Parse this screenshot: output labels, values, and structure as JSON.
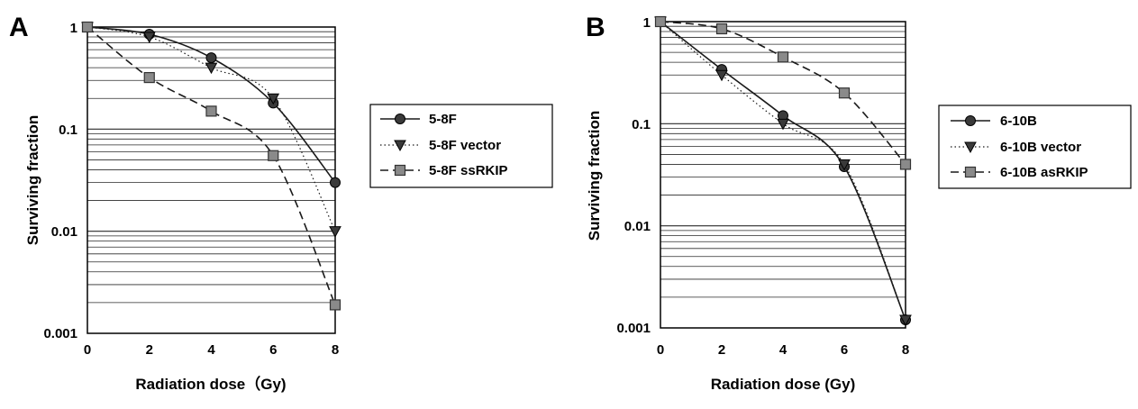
{
  "chart_data": [
    {
      "panel": "A",
      "type": "line",
      "xlabel": "Radiation dose（Gy)",
      "ylabel": "Surviving fraction",
      "x_ticks": [
        "0",
        "2",
        "4",
        "6",
        "8"
      ],
      "y_ticks": [
        "0.001",
        "0.01",
        "0.1",
        "1"
      ],
      "xlim": [
        0,
        8
      ],
      "ylim": [
        0.001,
        1
      ],
      "y_scale": "log",
      "grid": "horizontal",
      "legend_position": "right",
      "x": [
        0,
        2,
        4,
        6,
        8
      ],
      "series": [
        {
          "name": "5-8F",
          "marker": "circle",
          "line": "solid",
          "values": [
            1.0,
            0.85,
            0.5,
            0.18,
            0.03
          ]
        },
        {
          "name": "5-8F vector",
          "marker": "triangle-down",
          "line": "dotted",
          "values": [
            1.0,
            0.8,
            0.4,
            0.2,
            0.01
          ]
        },
        {
          "name": "5-8F ssRKIP",
          "marker": "square",
          "line": "dashed",
          "values": [
            1.0,
            0.32,
            0.15,
            0.055,
            0.0019
          ]
        }
      ]
    },
    {
      "panel": "B",
      "type": "line",
      "xlabel": "Radiation dose (Gy)",
      "ylabel": "Surviving fraction",
      "x_ticks": [
        "0",
        "2",
        "4",
        "6",
        "8"
      ],
      "y_ticks": [
        "0.001",
        "0.01",
        "0.1",
        "1"
      ],
      "xlim": [
        0,
        8
      ],
      "ylim": [
        0.001,
        1
      ],
      "y_scale": "log",
      "grid": "horizontal",
      "legend_position": "right",
      "x": [
        0,
        2,
        4,
        6,
        8
      ],
      "series": [
        {
          "name": "6-10B",
          "marker": "circle",
          "line": "solid",
          "values": [
            1.0,
            0.34,
            0.12,
            0.038,
            0.0012
          ]
        },
        {
          "name": "6-10B vector",
          "marker": "triangle-down",
          "line": "dotted",
          "values": [
            1.0,
            0.3,
            0.1,
            0.04,
            0.0012
          ]
        },
        {
          "name": "6-10B asRKIP",
          "marker": "square",
          "line": "dashed",
          "values": [
            1.0,
            0.85,
            0.45,
            0.2,
            0.04
          ]
        }
      ]
    }
  ],
  "colors": {
    "line": "#1a1a1a",
    "marker_dark": "#3a3a3a",
    "marker_square": "#8a8a8a",
    "grid": "#2a2a2a",
    "legend_border": "#000000"
  }
}
